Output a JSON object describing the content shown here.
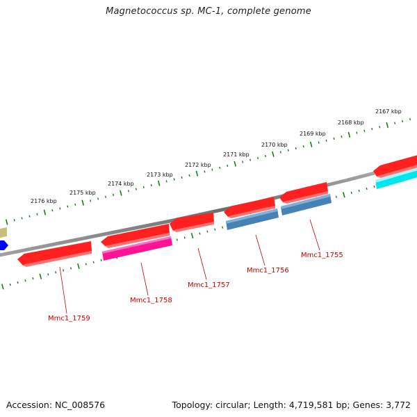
{
  "title": "Magnetococcus sp. MC-1, complete genome",
  "footer": {
    "accession": "Accession: NC_008576",
    "summary": "Topology: circular; Length: 4,719,581 bp; Genes: 3,772"
  },
  "ticks": [
    {
      "label": "2176 kbp"
    },
    {
      "label": "2175 kbp"
    },
    {
      "label": "2174 kbp"
    },
    {
      "label": "2173 kbp"
    },
    {
      "label": "2172 kbp"
    },
    {
      "label": "2171 kbp"
    },
    {
      "label": "2170 kbp"
    },
    {
      "label": "2169 kbp"
    },
    {
      "label": "2168 kbp"
    },
    {
      "label": "2167 kbp"
    }
  ],
  "genes": [
    {
      "label": "Mmc1_1759",
      "color": "#ff0000"
    },
    {
      "label": "Mmc1_1758",
      "color": "#ff0000"
    },
    {
      "label": "Mmc1_1757",
      "color": "#ff0000"
    },
    {
      "label": "Mmc1_1756",
      "color": "#ff0000"
    },
    {
      "label": "Mmc1_1755",
      "color": "#ff0000"
    }
  ],
  "colors": {
    "backbone": "#808080",
    "tick": "#1a7a1a",
    "gene_red": "#ff0000",
    "gene_pink": "#ff1493",
    "gene_steel": "#4682b4",
    "gene_cyan": "#00e5ee",
    "gene_khaki": "#c8c07a",
    "gene_blue": "#0000ff",
    "label": "#c80000"
  }
}
